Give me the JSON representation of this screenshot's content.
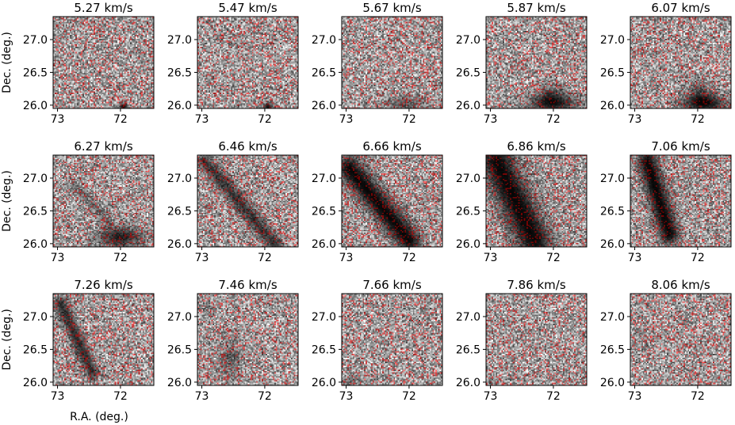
{
  "chart_data": {
    "type": "heatmap",
    "grid": "off",
    "colormap": "gray",
    "overlay_color": "#d62728",
    "xlabel": "R.A. (deg.)",
    "ylabel": "Dec. (deg.)",
    "xlim": [
      73.07,
      71.47
    ],
    "ylim": [
      25.95,
      27.35
    ],
    "xticks": [
      73,
      72
    ],
    "yticks": [
      26.0,
      26.5,
      27.0
    ],
    "xtick_labels": [
      "73",
      "72"
    ],
    "ytick_labels": [
      "26.0",
      "26.5",
      "27.0"
    ],
    "panels": [
      {
        "title": "5.27 km/s",
        "velocity": 5.27,
        "emission": [
          {
            "ra": 71.95,
            "dec": 25.98,
            "sra": 0.05,
            "sdec": 0.04,
            "amp": 1.0
          }
        ]
      },
      {
        "title": "5.47 km/s",
        "velocity": 5.47,
        "emission": [
          {
            "ra": 71.95,
            "dec": 25.98,
            "sra": 0.06,
            "sdec": 0.04,
            "amp": 0.95
          }
        ]
      },
      {
        "title": "5.67 km/s",
        "velocity": 5.67,
        "emission": [
          {
            "ra": 72.05,
            "dec": 26.02,
            "sra": 0.22,
            "sdec": 0.09,
            "amp": 0.45
          }
        ]
      },
      {
        "title": "5.87 km/s",
        "velocity": 5.87,
        "emission": [
          {
            "ra": 72.0,
            "dec": 26.03,
            "sra": 0.28,
            "sdec": 0.1,
            "amp": 0.9
          },
          {
            "ra": 72.05,
            "dec": 26.2,
            "sra": 0.12,
            "sdec": 0.1,
            "amp": 0.4
          }
        ]
      },
      {
        "title": "6.07 km/s",
        "velocity": 6.07,
        "emission": [
          {
            "ra": 71.9,
            "dec": 26.03,
            "sra": 0.25,
            "sdec": 0.1,
            "amp": 1.0
          },
          {
            "ra": 71.98,
            "dec": 26.25,
            "sra": 0.12,
            "sdec": 0.12,
            "amp": 0.45
          }
        ]
      },
      {
        "title": "6.27 km/s",
        "velocity": 6.27,
        "emission": [
          {
            "ra": 72.0,
            "dec": 26.1,
            "sra": 0.25,
            "sdec": 0.12,
            "amp": 0.85
          },
          {
            "ra0": 72.2,
            "dec0": 26.35,
            "ra1": 72.75,
            "dec1": 26.9,
            "w": 0.06,
            "amp": 0.35
          }
        ]
      },
      {
        "title": "6.46 km/s",
        "velocity": 6.46,
        "emission": [
          {
            "ra0": 72.95,
            "dec0": 27.25,
            "ra1": 71.85,
            "dec1": 26.0,
            "w": 0.09,
            "amp": 0.7
          }
        ]
      },
      {
        "title": "6.66 km/s",
        "velocity": 6.66,
        "emission": [
          {
            "ra0": 72.95,
            "dec0": 27.15,
            "ra1": 72.0,
            "dec1": 26.05,
            "w": 0.14,
            "amp": 1.0
          }
        ]
      },
      {
        "title": "6.86 km/s",
        "velocity": 6.86,
        "emission": [
          {
            "ra0": 72.9,
            "dec0": 27.25,
            "ra1": 72.3,
            "dec1": 26.05,
            "w": 0.2,
            "amp": 1.0
          }
        ]
      },
      {
        "title": "7.06 km/s",
        "velocity": 7.06,
        "emission": [
          {
            "ra0": 72.8,
            "dec0": 27.25,
            "ra1": 72.45,
            "dec1": 26.15,
            "w": 0.12,
            "amp": 1.0
          }
        ]
      },
      {
        "title": "7.26 km/s",
        "velocity": 7.26,
        "emission": [
          {
            "ra0": 72.95,
            "dec0": 27.2,
            "ra1": 72.45,
            "dec1": 26.15,
            "w": 0.08,
            "amp": 0.75
          }
        ]
      },
      {
        "title": "7.46 km/s",
        "velocity": 7.46,
        "emission": [
          {
            "ra": 72.55,
            "dec": 26.35,
            "sra": 0.12,
            "sdec": 0.2,
            "amp": 0.45
          },
          {
            "ra": 72.9,
            "dec": 27.1,
            "sra": 0.08,
            "sdec": 0.08,
            "amp": 0.25
          }
        ]
      },
      {
        "title": "7.66 km/s",
        "velocity": 7.66,
        "emission": [
          {
            "ra": 72.95,
            "dec": 26.0,
            "sra": 0.1,
            "sdec": 0.06,
            "amp": 0.35
          }
        ]
      },
      {
        "title": "7.86 km/s",
        "velocity": 7.86,
        "emission": [
          {
            "ra": 72.95,
            "dec": 26.0,
            "sra": 0.06,
            "sdec": 0.04,
            "amp": 0.25
          }
        ]
      },
      {
        "title": "8.06 km/s",
        "velocity": 8.06,
        "emission": []
      }
    ]
  }
}
